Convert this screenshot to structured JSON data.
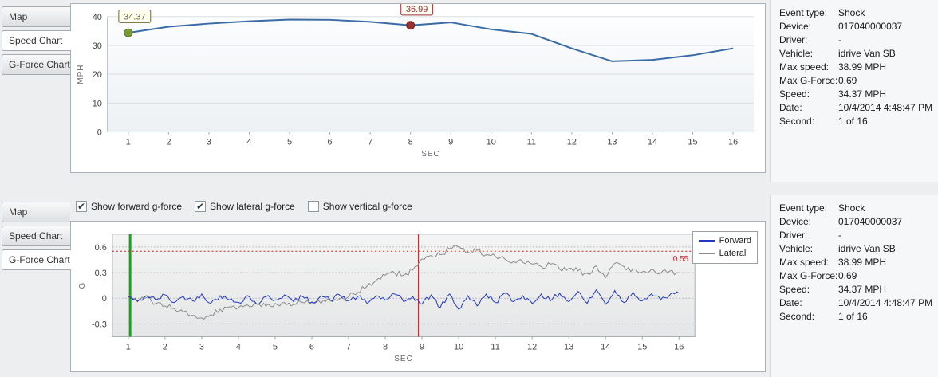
{
  "tabs": [
    "Map",
    "Speed Chart",
    "G-Force Chart"
  ],
  "top_panel": {
    "selected_tab": 1
  },
  "bottom_panel": {
    "selected_tab": 2,
    "checkboxes": [
      {
        "label": "Show forward g-force",
        "checked": true
      },
      {
        "label": "Show lateral g-force",
        "checked": true
      },
      {
        "label": "Show vertical g-force",
        "checked": false
      }
    ]
  },
  "event_info": {
    "rows": [
      {
        "label": "Event type:",
        "value": "Shock"
      },
      {
        "label": "Device:",
        "value": "017040000037"
      },
      {
        "label": "Driver:",
        "value": "-"
      },
      {
        "label": "Vehicle:",
        "value": "idrive Van SB"
      },
      {
        "label": "Max speed:",
        "value": "38.99 MPH"
      },
      {
        "label": "Max G-Force:",
        "value": "0.69"
      },
      {
        "label": "Speed:",
        "value": "34.37 MPH"
      },
      {
        "label": "Date:",
        "value": "10/4/2014 4:48:47 PM"
      },
      {
        "label": "Second:",
        "value": "1 of 16"
      }
    ]
  },
  "chart_data": [
    {
      "id": "speed",
      "type": "line",
      "title": "",
      "xlabel": "SEC",
      "ylabel": "MPH",
      "x": [
        1,
        2,
        3,
        4,
        5,
        6,
        7,
        8,
        9,
        10,
        11,
        12,
        13,
        14,
        15,
        16
      ],
      "values": [
        34.37,
        36.5,
        37.6,
        38.4,
        39.0,
        38.9,
        38.2,
        36.99,
        38.0,
        35.6,
        34.0,
        29.0,
        24.5,
        25.0,
        26.6,
        29.0
      ],
      "ylim": [
        0,
        40
      ],
      "yticks": [
        0,
        10,
        20,
        30,
        40
      ],
      "grid": true,
      "line_color": "#3a6ba5",
      "annotations": [
        {
          "x": 1,
          "y": 34.37,
          "label": "34.37",
          "dot_color": "#7b9b35",
          "dot_stroke": "#5a7320",
          "text_color": "#6a6a30"
        },
        {
          "x": 8,
          "y": 36.99,
          "label": "36.99",
          "dot_color": "#993333",
          "dot_stroke": "#6e1f1f",
          "text_color": "#993333"
        }
      ]
    },
    {
      "id": "gforce",
      "type": "line",
      "title": "",
      "xlabel": "SEC",
      "ylabel": "G",
      "ylim": [
        -0.45,
        0.75
      ],
      "yticks": [
        -0.3,
        0,
        0.3,
        0.6
      ],
      "xticks": [
        1,
        2,
        3,
        4,
        5,
        6,
        7,
        8,
        9,
        10,
        11,
        12,
        13,
        14,
        15,
        16
      ],
      "grid": true,
      "legend_position": "right",
      "threshold": {
        "y": 0.55,
        "label": "0.55",
        "color": "#cc2222"
      },
      "vlines": [
        {
          "x": 1.05,
          "color": "#1f9e1f",
          "width": 3,
          "name": "event-start-line"
        },
        {
          "x": 8.9,
          "color": "#cc2222",
          "width": 1,
          "name": "event-trigger-line"
        }
      ],
      "series": [
        {
          "name": "Forward",
          "color": "#2238c0",
          "x0": 1,
          "dx": 0.25,
          "noise": 0.03,
          "values": [
            0.02,
            -0.04,
            0.03,
            -0.02,
            0.04,
            -0.05,
            0.02,
            -0.03,
            0.05,
            -0.06,
            0.03,
            -0.02,
            -0.05,
            0.03,
            -0.07,
            0.02,
            -0.02,
            0.04,
            -0.04,
            0.02,
            -0.05,
            0.03,
            -0.02,
            0.04,
            -0.03,
            0.02,
            -0.06,
            0.03,
            -0.02,
            0.05,
            -0.04,
            0.02,
            -0.07,
            0.04,
            -0.11,
            0.05,
            -0.13,
            0.03,
            -0.09,
            0.05,
            -0.05,
            0.06,
            -0.04,
            0.03,
            -0.06,
            0.05,
            -0.03,
            0.06,
            -0.04,
            0.08,
            -0.06,
            0.1,
            -0.07,
            0.09,
            -0.05,
            0.07,
            -0.03,
            0.05,
            -0.02,
            0.04,
            0.06
          ]
        },
        {
          "name": "Lateral",
          "color": "#8a8a8a",
          "x0": 1,
          "dx": 0.25,
          "noise": 0.035,
          "values": [
            0.02,
            -0.03,
            0.01,
            -0.06,
            -0.09,
            -0.12,
            -0.16,
            -0.2,
            -0.23,
            -0.19,
            -0.13,
            -0.1,
            -0.11,
            -0.08,
            -0.07,
            -0.09,
            -0.06,
            -0.05,
            -0.07,
            -0.05,
            -0.04,
            -0.06,
            -0.03,
            -0.01,
            0.02,
            0.07,
            0.14,
            0.21,
            0.27,
            0.3,
            0.27,
            0.33,
            0.46,
            0.5,
            0.51,
            0.58,
            0.6,
            0.54,
            0.56,
            0.51,
            0.49,
            0.46,
            0.43,
            0.42,
            0.4,
            0.37,
            0.4,
            0.34,
            0.35,
            0.32,
            0.29,
            0.38,
            0.24,
            0.41,
            0.37,
            0.34,
            0.31,
            0.34,
            0.29,
            0.32,
            0.3
          ]
        }
      ]
    }
  ]
}
